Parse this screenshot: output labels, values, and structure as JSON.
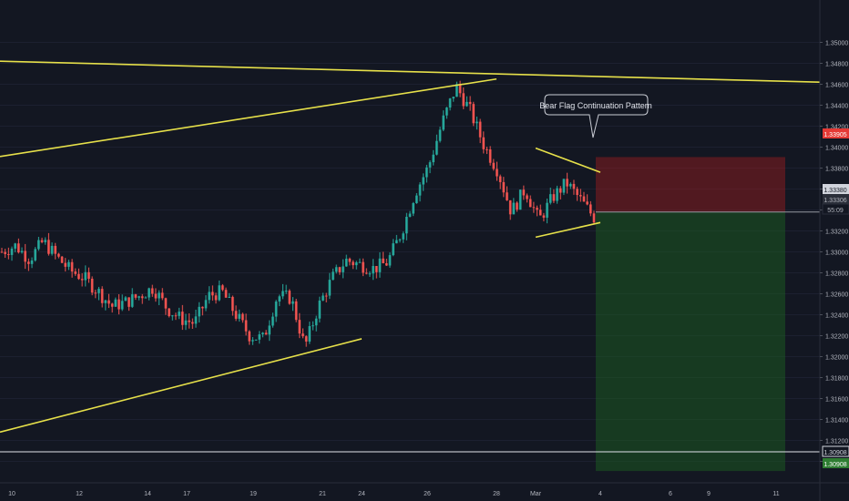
{
  "colors": {
    "background": "#131722",
    "grid": "#1c2030",
    "up": "#26a69a",
    "down": "#ef5350",
    "trendline": "#e6e04a",
    "axis_text": "#b2b5be",
    "stop_zone": "#b71c1c",
    "target_zone": "#1b5e20"
  },
  "annotation": {
    "text": "Bear Flag Continuation Pattern"
  },
  "price_tags": {
    "stop": "1.33905",
    "entry": "1.33380",
    "last": "1.33306",
    "countdown": "55:09",
    "target": "1.30908"
  },
  "chart_data": {
    "type": "candlestick",
    "title": "",
    "ylim": [
      1.3085,
      1.3515
    ],
    "y_ticks": [
      "1.35000",
      "1.34800",
      "1.34600",
      "1.34400",
      "1.34200",
      "1.34000",
      "1.33800",
      "1.33600",
      "1.33400",
      "1.33200",
      "1.33000",
      "1.32800",
      "1.32600",
      "1.32400",
      "1.32200",
      "1.32000",
      "1.31800",
      "1.31600",
      "1.31400",
      "1.31200",
      "1.31000"
    ],
    "x_ticks": [
      "10",
      "12",
      "14",
      "17",
      "19",
      "21",
      "24",
      "26",
      "28",
      "Mar",
      "4",
      "6",
      "9",
      "11"
    ],
    "price_path": [
      [
        "10",
        1.33
      ],
      [
        "10",
        1.3306
      ],
      [
        "10",
        1.3293
      ],
      [
        "10",
        1.331
      ],
      [
        "10",
        1.3295
      ],
      [
        "12",
        1.3282
      ],
      [
        "12",
        1.3275
      ],
      [
        "12",
        1.3262
      ],
      [
        "12",
        1.3248
      ],
      [
        "12",
        1.3252
      ],
      [
        "14",
        1.3258
      ],
      [
        "14",
        1.3266
      ],
      [
        "14",
        1.3246
      ],
      [
        "17",
        1.3236
      ],
      [
        "17",
        1.3232
      ],
      [
        "19",
        1.3258
      ],
      [
        "19",
        1.3262
      ],
      [
        "19",
        1.324
      ],
      [
        "19",
        1.322
      ],
      [
        "21",
        1.3217
      ],
      [
        "21",
        1.3258
      ],
      [
        "21",
        1.3256
      ],
      [
        "24",
        1.3209
      ],
      [
        "24",
        1.3248
      ],
      [
        "24",
        1.3275
      ],
      [
        "24",
        1.3292
      ],
      [
        "26",
        1.3288
      ],
      [
        "26",
        1.3284
      ],
      [
        "26",
        1.329
      ],
      [
        "26",
        1.3318
      ],
      [
        "28",
        1.3356
      ],
      [
        "28",
        1.3382
      ],
      [
        "28",
        1.3424
      ],
      [
        "28",
        1.3458
      ],
      [
        "Mar",
        1.3435
      ],
      [
        "Mar",
        1.3402
      ],
      [
        "Mar",
        1.3378
      ],
      [
        "Mar",
        1.3338
      ],
      [
        "Mar",
        1.336
      ],
      [
        "Mar",
        1.333
      ],
      [
        "Mar",
        1.3352
      ],
      [
        "Mar",
        1.3366
      ],
      [
        "Mar",
        1.335
      ],
      [
        "4",
        1.3333
      ]
    ],
    "trendlines": [
      {
        "name": "upper-resistance",
        "from": [
          "start",
          1.3482
        ],
        "to": [
          "end",
          1.3462
        ]
      },
      {
        "name": "channel-top",
        "from": [
          "start",
          1.3391
        ],
        "to": [
          "28",
          1.3465
        ]
      },
      {
        "name": "channel-bottom",
        "from": [
          "start",
          1.3128
        ],
        "to": [
          "24",
          1.3217
        ]
      },
      {
        "name": "flag-top",
        "from": [
          "Mar",
          1.3399
        ],
        "to": [
          "4",
          1.3376
        ]
      },
      {
        "name": "flag-bottom",
        "from": [
          "Mar",
          1.3314
        ],
        "to": [
          "4",
          1.3328
        ]
      }
    ],
    "position": {
      "side": "short",
      "stop": 1.33905,
      "entry": 1.3338,
      "target": 1.30908,
      "last": 1.33306
    },
    "grid": false
  }
}
